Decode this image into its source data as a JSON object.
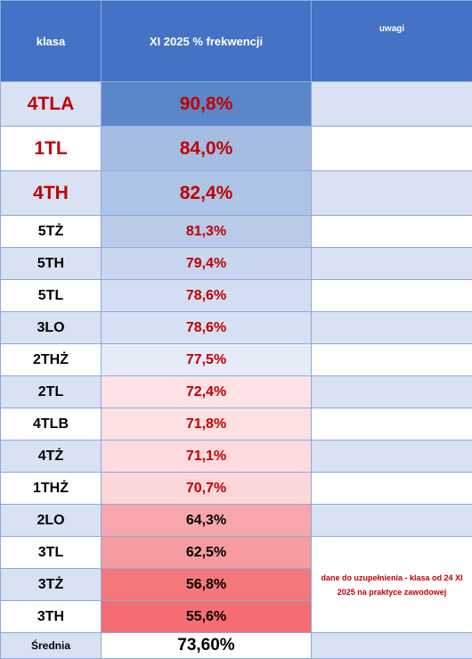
{
  "header": {
    "col_class": "klasa",
    "col_attendance": "XI 2025 % frekwencji",
    "col_notes": "uwagi"
  },
  "rows": [
    {
      "klasa": "4TLA",
      "frekwencja": "90,8%",
      "bg": "#5b87c8"
    },
    {
      "klasa": "1TL",
      "frekwencja": "84,0%",
      "bg": "#a5bde3"
    },
    {
      "klasa": "4TH",
      "frekwencja": "82,4%",
      "bg": "#aec4e6"
    },
    {
      "klasa": "5TŻ",
      "frekwencja": "81,3%",
      "bg": "#b9cbe9"
    },
    {
      "klasa": "5TH",
      "frekwencja": "79,4%",
      "bg": "#c8d6ee"
    },
    {
      "klasa": "5TL",
      "frekwencja": "78,6%",
      "bg": "#d3def2"
    },
    {
      "klasa": "3LO",
      "frekwencja": "78,6%",
      "bg": "#d6e1f3"
    },
    {
      "klasa": "2THŻ",
      "frekwencja": "77,5%",
      "bg": "#e6ecf7"
    },
    {
      "klasa": "2TL",
      "frekwencja": "72,4%",
      "bg": "#fde3e5"
    },
    {
      "klasa": "4TLB",
      "frekwencja": "71,8%",
      "bg": "#fde0e2"
    },
    {
      "klasa": "4TŻ",
      "frekwencja": "71,1%",
      "bg": "#fcdadd"
    },
    {
      "klasa": "1THŻ",
      "frekwencja": "70,7%",
      "bg": "#fcd7da"
    },
    {
      "klasa": "2LO",
      "frekwencja": "64,3%",
      "bg": "#f7a7ab"
    },
    {
      "klasa": "3TL",
      "frekwencja": "62,5%",
      "bg": "#f69b9f"
    },
    {
      "klasa": "3TŻ",
      "frekwencja": "56,8%",
      "bg": "#f4777b"
    },
    {
      "klasa": "3TH",
      "frekwencja": "55,6%",
      "bg": "#f46d72"
    }
  ],
  "note": "dane do uzupełnienia  - klasa od 24 XI 2025 na praktyce zawodowej",
  "footer": {
    "label": "Średnia",
    "value": "73,60%"
  }
}
